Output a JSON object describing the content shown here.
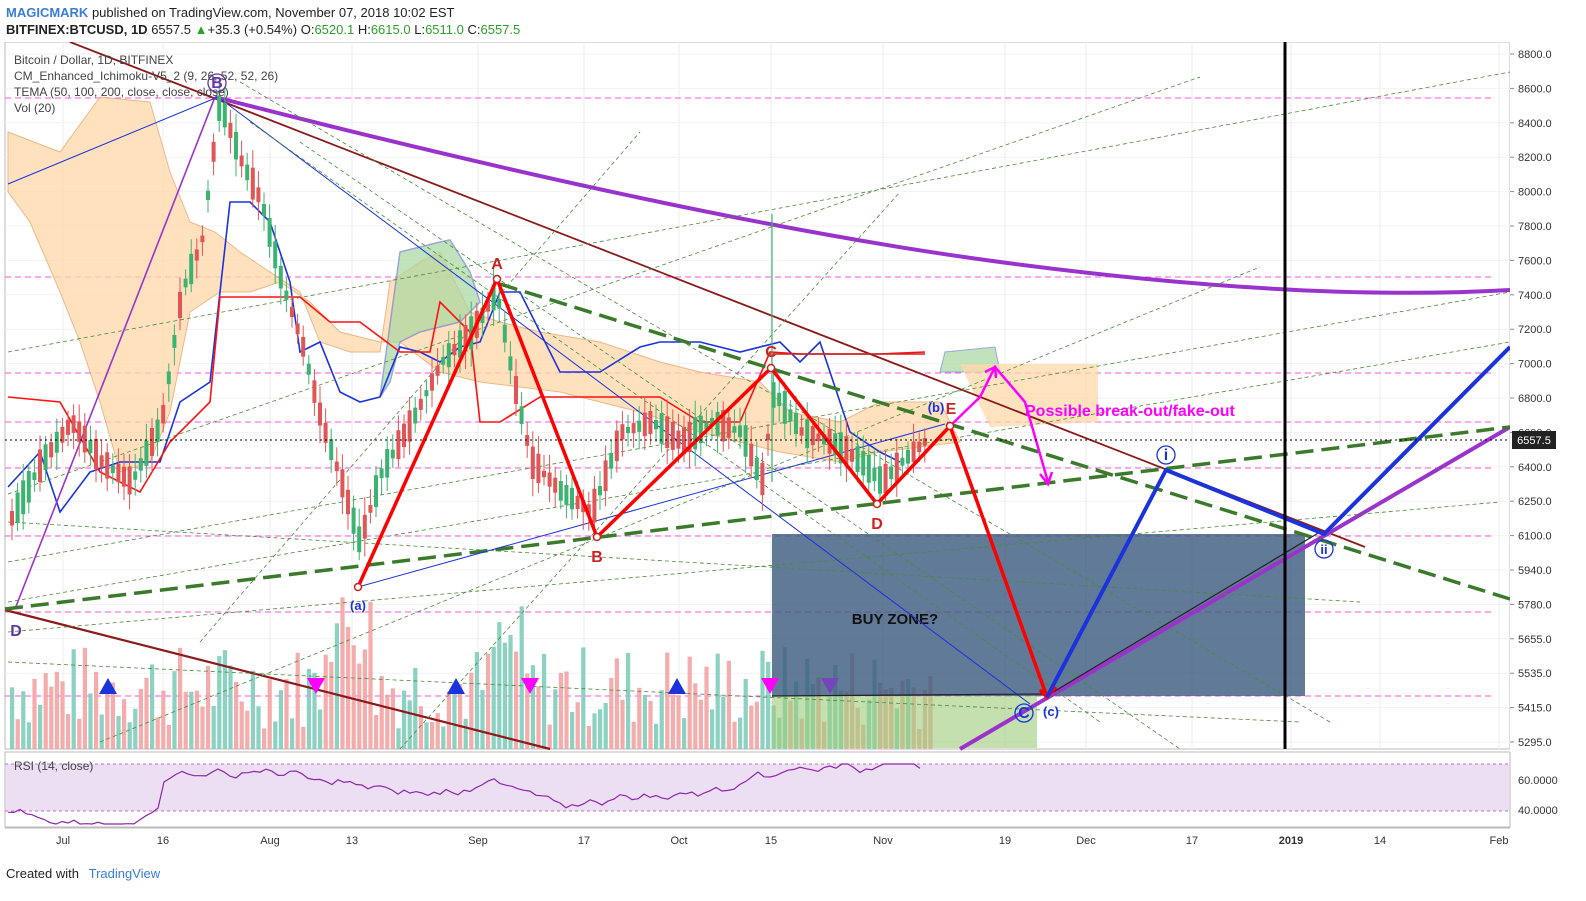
{
  "header": {
    "publisher": "MAGICMARK",
    "published_text": "published on TradingView.com, November 07, 2018 10:02 EST",
    "symbol": "BITFINEX:BTCUSD, 1D",
    "price": "6557.5",
    "change_arrow": "▲",
    "change": "+35.3 (+0.54%)",
    "o_label": "O:",
    "o_val": "6520.1",
    "h_label": "H:",
    "h_val": "6615.0",
    "l_label": "L:",
    "l_val": "6511.0",
    "c_label": "C:",
    "c_val": "6557.5"
  },
  "legend": {
    "line1": "Bitcoin / Dollar, 1D, BITFINEX",
    "line2": "CM_Enhanced_Ichimoku-V5_2 (9, 26, 52, 52, 26)",
    "line3": "TEMA (50, 100, 200, close, close, close)",
    "line4": "Vol (20)"
  },
  "rsi_label": "RSI (14, close)",
  "footer": {
    "created_with": "Created with",
    "tradingview": "TradingView"
  },
  "colors": {
    "candle_up": "#3cb371",
    "candle_down": "#e05555",
    "red_path": "#ff0000",
    "purple": "#9933cc",
    "blue_path": "#1a33dd",
    "magenta": "#ff00ff",
    "buy_zone": "#3d5d80",
    "green_dash": "#3a7a2a",
    "darkred": "#8b1a1a"
  },
  "chart_data": {
    "type": "line",
    "title": "Bitcoin / Dollar, 1D, BITFINEX",
    "y_axis": {
      "ticks": [
        "8800.0",
        "8600.0",
        "8400.0",
        "8200.0",
        "8000.0",
        "7800.0",
        "7600.0",
        "7400.0",
        "7200.0",
        "7000.0",
        "6800.0",
        "6600.0",
        "6400.0",
        "6250.0",
        "6100.0",
        "5940.0",
        "5780.0",
        "5655.0",
        "5535.0",
        "5415.0",
        "5295.0"
      ],
      "current_price_label": "6557.5"
    },
    "x_axis": {
      "ticks": [
        "Jul",
        "16",
        "Aug",
        "13",
        "Sep",
        "17",
        "Oct",
        "15",
        "Nov",
        "19",
        "Dec",
        "17",
        "2019",
        "14",
        "Feb"
      ]
    },
    "rsi_axis": {
      "ticks": [
        "60.0000",
        "40.0000"
      ]
    },
    "price_series": [
      {
        "date": "Jul",
        "value": 6400
      },
      {
        "date": "Jul 16",
        "value": 7300
      },
      {
        "date": "Jul 24",
        "value": 8450
      },
      {
        "date": "Aug",
        "value": 7600
      },
      {
        "date": "Aug 13",
        "value": 6300
      },
      {
        "date": "Sep",
        "value": 7200
      },
      {
        "date": "Sep 17",
        "value": 6300
      },
      {
        "date": "Oct",
        "value": 6500
      },
      {
        "date": "Oct 15",
        "value": 6450
      },
      {
        "date": "Nov",
        "value": 6400
      },
      {
        "date": "Nov 7",
        "value": 6557.5
      }
    ],
    "wave_points": [
      {
        "label": "(a)",
        "date": "Aug 13",
        "value": 5870
      },
      {
        "label": "A",
        "date": "Sep 4",
        "value": 7410
      },
      {
        "label": "B",
        "date": "Sep 17",
        "value": 6100
      },
      {
        "label": "C",
        "date": "Oct 15",
        "value": 6930
      },
      {
        "label": "D",
        "date": "Oct 31",
        "value": 6240
      },
      {
        "label": "E",
        "date": "Nov 11",
        "value": 6660
      },
      {
        "label": "(b)",
        "date": "Nov 8",
        "value": 6680
      },
      {
        "label": "(c)",
        "date": "Nov 27",
        "value": 5390
      },
      {
        "label": "i",
        "date": "Dec 20",
        "value": 6410
      },
      {
        "label": "ii",
        "date": "Jan 7",
        "value": 6100
      }
    ],
    "labels_on_chart": {
      "annotation_breakout": "Possible break-out/fake-out",
      "buy_zone": "BUY ZONE?",
      "D_left": "D",
      "B_top": "B",
      "C_circle": "C"
    }
  }
}
